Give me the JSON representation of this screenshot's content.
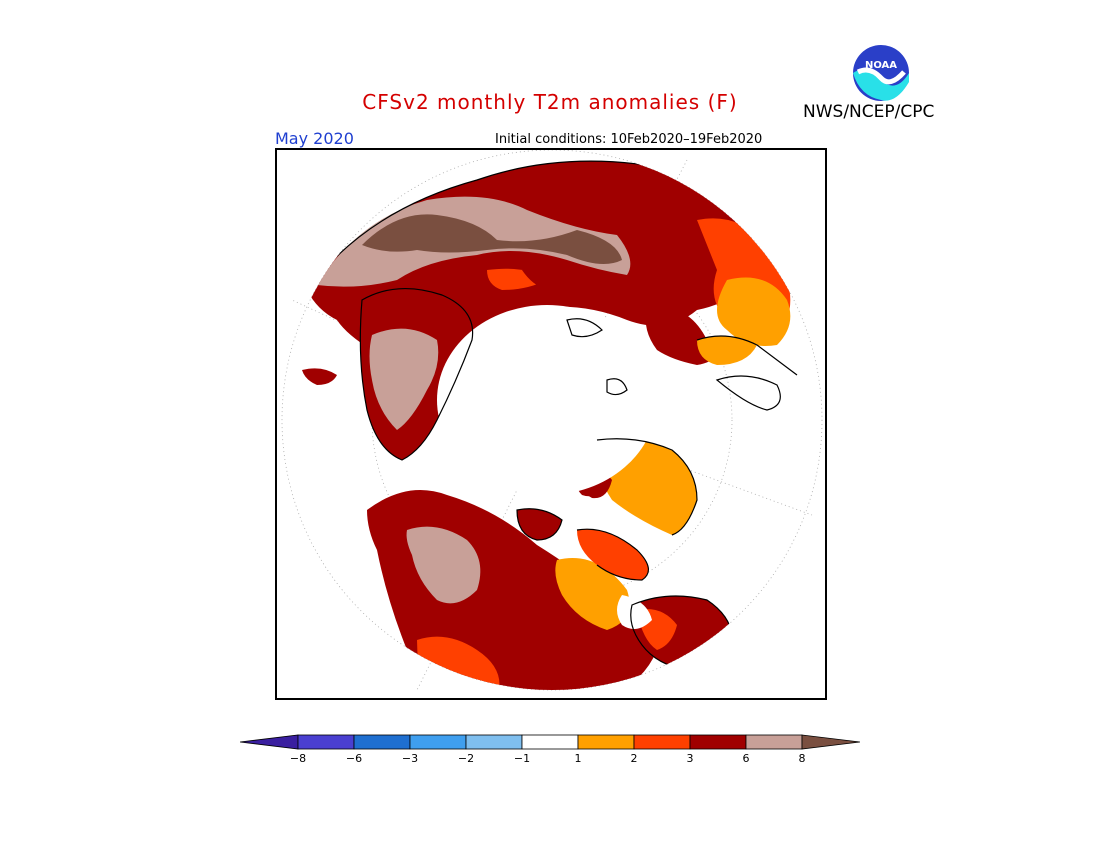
{
  "header": {
    "title": "CFSv2 monthly T2m anomalies (F)",
    "month": "May 2020",
    "initial_conditions": "Initial conditions: 10Feb2020–19Feb2020",
    "agency": "NWS/NCEP/CPC",
    "logo_text": "NOAA"
  },
  "colorbar": {
    "labels": [
      "−8",
      "−6",
      "−3",
      "−2",
      "−1",
      "1",
      "2",
      "3",
      "6",
      "8"
    ],
    "colors": [
      "#3a1fa0",
      "#4a3fd0",
      "#1f6fd0",
      "#3f9fef",
      "#7fbfef",
      "#ffffff",
      "#ffa000",
      "#ff4000",
      "#a00000",
      "#c8a098",
      "#7a4f40"
    ]
  },
  "map": {
    "legend_colors": {
      "warm_1_2": "#ffa000",
      "warm_2_3": "#ff4000",
      "warm_3_6": "#a00000",
      "warm_6_8": "#c8a098",
      "warm_gt_8": "#7a4f40"
    }
  }
}
